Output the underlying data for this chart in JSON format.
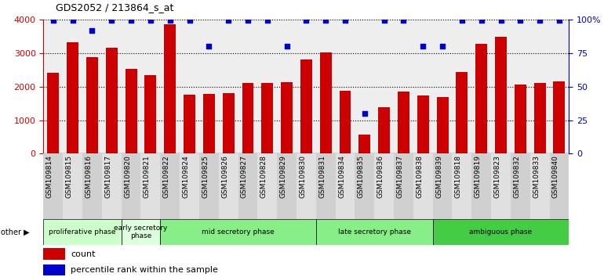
{
  "title": "GDS2052 / 213864_s_at",
  "samples": [
    "GSM109814",
    "GSM109815",
    "GSM109816",
    "GSM109817",
    "GSM109820",
    "GSM109821",
    "GSM109822",
    "GSM109824",
    "GSM109825",
    "GSM109826",
    "GSM109827",
    "GSM109828",
    "GSM109829",
    "GSM109830",
    "GSM109831",
    "GSM109834",
    "GSM109835",
    "GSM109836",
    "GSM109837",
    "GSM109838",
    "GSM109839",
    "GSM109818",
    "GSM109819",
    "GSM109823",
    "GSM109832",
    "GSM109833",
    "GSM109840"
  ],
  "counts": [
    2420,
    3330,
    2880,
    3160,
    2520,
    2340,
    3850,
    1760,
    1780,
    1800,
    2100,
    2100,
    2140,
    2800,
    3020,
    1880,
    570,
    1390,
    1840,
    1730,
    1680,
    2430,
    3280,
    3480,
    2070,
    2100,
    2160
  ],
  "percentiles": [
    99,
    99,
    92,
    99,
    99,
    99,
    99,
    99,
    80,
    99,
    99,
    99,
    80,
    99,
    99,
    99,
    30,
    99,
    99,
    80,
    80,
    99,
    99,
    99,
    99,
    99,
    99
  ],
  "phases": [
    {
      "label": "proliferative phase",
      "start": 0,
      "end": 4,
      "color": "#ccffcc"
    },
    {
      "label": "early secretory\nphase",
      "start": 4,
      "end": 6,
      "color": "#ddffdd"
    },
    {
      "label": "mid secretory phase",
      "start": 6,
      "end": 14,
      "color": "#88ee88"
    },
    {
      "label": "late secretory phase",
      "start": 14,
      "end": 20,
      "color": "#88ee88"
    },
    {
      "label": "ambiguous phase",
      "start": 20,
      "end": 27,
      "color": "#44cc44"
    }
  ],
  "bar_color": "#cc0000",
  "dot_color": "#0000cc",
  "ylim": [
    0,
    4000
  ],
  "yticks": [
    0,
    1000,
    2000,
    3000,
    4000
  ],
  "y2ticks": [
    0,
    25,
    50,
    75,
    100
  ],
  "y2ticklabels": [
    "0",
    "25",
    "50",
    "75",
    "100%"
  ],
  "background_color": "#eeeeee",
  "title_color": "#000000",
  "axis_label_color_left": "#cc0000",
  "axis_label_color_right": "#0000cc"
}
